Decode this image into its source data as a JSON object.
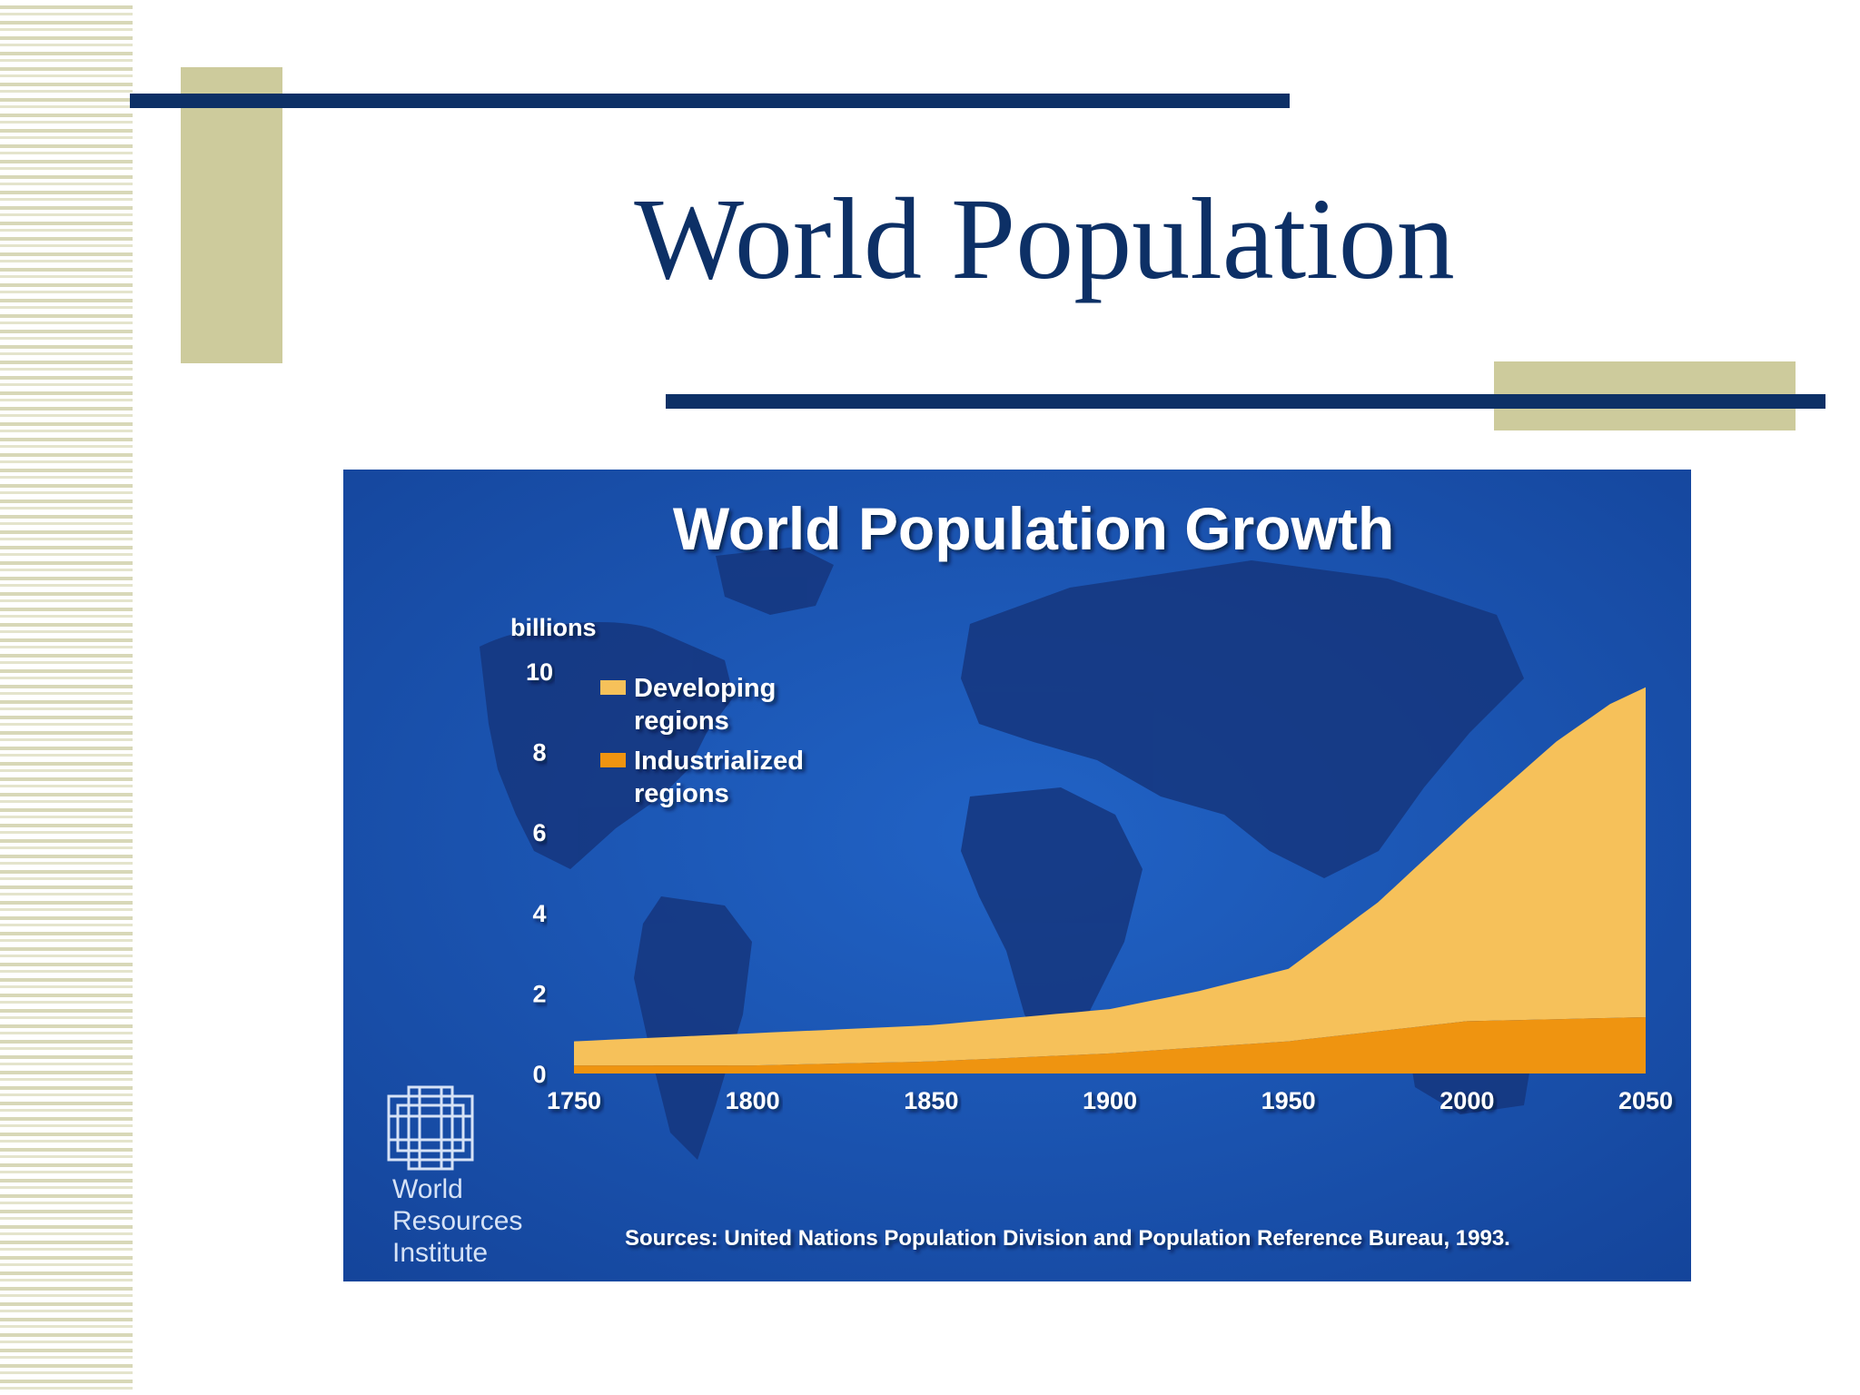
{
  "slide": {
    "title": "World Population"
  },
  "logo": {
    "name_lines": [
      "World",
      "Resources",
      "Institute"
    ],
    "icon": "wri-woven-logo-icon"
  },
  "colors": {
    "navy": "#0d3066",
    "tan": "#cdcb9c",
    "chart_bg": "#1a54b2",
    "continent": "#15367e",
    "developing": "#f6c15a",
    "industrialized": "#ef9410"
  },
  "chart_data": {
    "type": "area",
    "title": "World Population Growth",
    "ylabel": "billions",
    "ylim": [
      0,
      10
    ],
    "yticks": [
      0,
      2,
      4,
      6,
      8,
      10
    ],
    "xlim": [
      1750,
      2050
    ],
    "xticks": [
      1750,
      1800,
      1850,
      1900,
      1950,
      2000,
      2050
    ],
    "stacked": true,
    "legend_position": "top-left",
    "series": [
      {
        "name": "Industrialized regions",
        "color": "#ef9410",
        "x": [
          1750,
          1800,
          1850,
          1900,
          1950,
          2000,
          2050
        ],
        "values": [
          0.2,
          0.2,
          0.3,
          0.5,
          0.8,
          1.3,
          1.4
        ]
      },
      {
        "name": "Developing regions",
        "color": "#f6c15a",
        "x": [
          1750,
          1800,
          1850,
          1900,
          1925,
          1950,
          1975,
          2000,
          2025,
          2040,
          2050
        ],
        "values": [
          0.6,
          0.8,
          0.9,
          1.1,
          1.4,
          1.8,
          3.2,
          5.0,
          6.9,
          7.8,
          8.2
        ]
      }
    ],
    "legend": [
      {
        "lines": [
          "Developing",
          "regions"
        ],
        "color": "#f6c15a"
      },
      {
        "lines": [
          "Industrialized",
          "regions"
        ],
        "color": "#ef9410"
      }
    ],
    "source": "Sources: United Nations Population Division and Population Reference Bureau, 1993."
  }
}
